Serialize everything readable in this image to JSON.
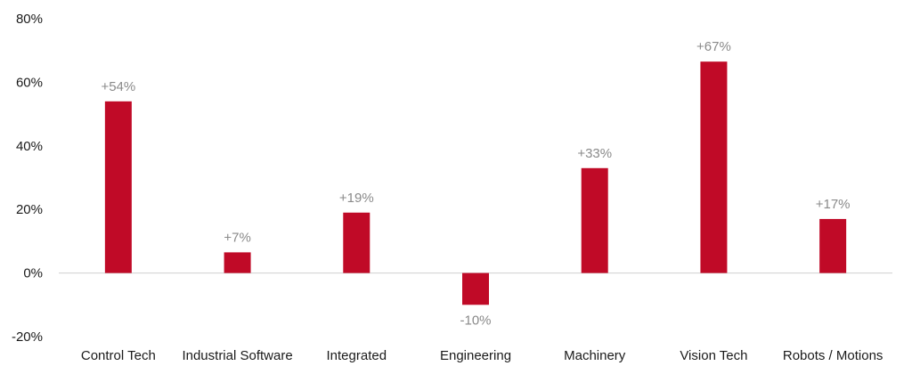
{
  "chart_data": {
    "type": "bar",
    "title": "",
    "xlabel": "",
    "ylabel": "",
    "categories": [
      "Control Tech",
      "Industrial Software",
      "Integrated",
      "Engineering",
      "Machinery",
      "Vision Tech",
      "Robots / Motions"
    ],
    "values": [
      54,
      6.5,
      19,
      -10,
      33,
      66.5,
      17
    ],
    "data_labels": [
      "+54%",
      "+7%",
      "+19%",
      "-10%",
      "+33%",
      "+67%",
      "+17%"
    ],
    "ylim": [
      -20,
      80
    ],
    "yticks": [
      80,
      60,
      40,
      20,
      0,
      -20
    ],
    "ytick_labels": [
      "80%",
      "60%",
      "40%",
      "20%",
      "0%",
      "-20%"
    ],
    "grid": false,
    "legend": "none",
    "bar_color": "#c00a27"
  }
}
